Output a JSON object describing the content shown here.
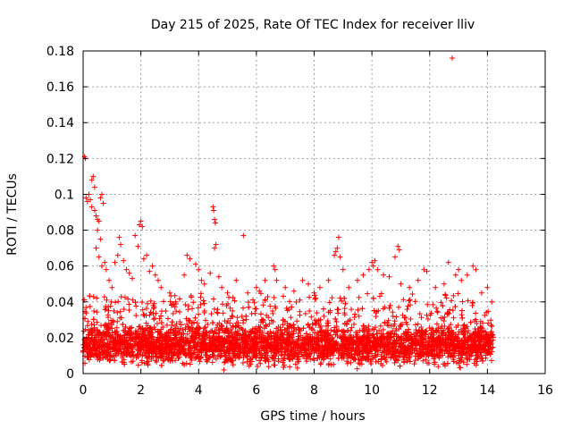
{
  "chart_data": {
    "type": "scatter",
    "title": "Day 215 of 2025, Rate Of TEC Index for receiver lliv",
    "xlabel": "GPS time / hours",
    "ylabel": "ROTI / TECUs",
    "xlim": [
      0,
      16
    ],
    "ylim": [
      0,
      0.18
    ],
    "xticks": [
      0,
      2,
      4,
      6,
      8,
      10,
      12,
      14,
      16
    ],
    "yticks": [
      0,
      0.02,
      0.04,
      0.06,
      0.08,
      0.1,
      0.12,
      0.14,
      0.16,
      0.18
    ],
    "xtick_labels": [
      "0",
      "2",
      "4",
      "6",
      "8",
      "10",
      "12",
      "14",
      "16"
    ],
    "ytick_labels": [
      "0",
      "0.02",
      "0.04",
      "0.06",
      "0.08",
      "0.1",
      "0.12",
      "0.14",
      "0.16",
      "0.18"
    ],
    "grid": true,
    "marker": "+",
    "color": "#ff0000",
    "series": [
      {
        "name": "ROTI",
        "points": [
          [
            0.05,
            0.121
          ],
          [
            0.08,
            0.12
          ],
          [
            0.1,
            0.098
          ],
          [
            0.15,
            0.096
          ],
          [
            0.2,
            0.1
          ],
          [
            0.25,
            0.097
          ],
          [
            0.3,
            0.108
          ],
          [
            0.35,
            0.11
          ],
          [
            0.4,
            0.104
          ],
          [
            0.45,
            0.088
          ],
          [
            0.5,
            0.086
          ],
          [
            0.55,
            0.085
          ],
          [
            0.6,
            0.098
          ],
          [
            0.65,
            0.1
          ],
          [
            0.7,
            0.095
          ],
          [
            0.3,
            0.093
          ],
          [
            0.4,
            0.091
          ],
          [
            0.5,
            0.08
          ],
          [
            0.45,
            0.07
          ],
          [
            0.55,
            0.065
          ],
          [
            0.6,
            0.075
          ],
          [
            0.65,
            0.06
          ],
          [
            0.75,
            0.062
          ],
          [
            0.8,
            0.058
          ],
          [
            0.9,
            0.052
          ],
          [
            1.0,
            0.048
          ],
          [
            1.1,
            0.062
          ],
          [
            1.2,
            0.066
          ],
          [
            1.25,
            0.076
          ],
          [
            1.3,
            0.072
          ],
          [
            1.4,
            0.063
          ],
          [
            1.5,
            0.058
          ],
          [
            1.6,
            0.056
          ],
          [
            1.7,
            0.053
          ],
          [
            1.8,
            0.077
          ],
          [
            1.9,
            0.071
          ],
          [
            1.95,
            0.083
          ],
          [
            2.0,
            0.085
          ],
          [
            2.05,
            0.082
          ],
          [
            2.1,
            0.064
          ],
          [
            2.2,
            0.066
          ],
          [
            2.3,
            0.057
          ],
          [
            2.4,
            0.06
          ],
          [
            2.5,
            0.055
          ],
          [
            2.6,
            0.052
          ],
          [
            2.7,
            0.048
          ],
          [
            3.0,
            0.045
          ],
          [
            3.2,
            0.04
          ],
          [
            3.5,
            0.055
          ],
          [
            3.6,
            0.066
          ],
          [
            3.7,
            0.064
          ],
          [
            3.9,
            0.061
          ],
          [
            4.0,
            0.058
          ],
          [
            4.1,
            0.052
          ],
          [
            4.2,
            0.05
          ],
          [
            4.4,
            0.056
          ],
          [
            4.5,
            0.093
          ],
          [
            4.52,
            0.091
          ],
          [
            4.55,
            0.086
          ],
          [
            4.58,
            0.084
          ],
          [
            4.6,
            0.072
          ],
          [
            4.55,
            0.07
          ],
          [
            4.7,
            0.054
          ],
          [
            4.8,
            0.048
          ],
          [
            5.0,
            0.045
          ],
          [
            5.3,
            0.052
          ],
          [
            5.55,
            0.077
          ],
          [
            5.7,
            0.045
          ],
          [
            6.0,
            0.048
          ],
          [
            6.1,
            0.046
          ],
          [
            6.3,
            0.052
          ],
          [
            6.6,
            0.06
          ],
          [
            6.65,
            0.058
          ],
          [
            6.7,
            0.052
          ],
          [
            7.0,
            0.048
          ],
          [
            7.3,
            0.046
          ],
          [
            7.6,
            0.052
          ],
          [
            7.8,
            0.05
          ],
          [
            8.0,
            0.045
          ],
          [
            8.2,
            0.048
          ],
          [
            8.5,
            0.052
          ],
          [
            8.7,
            0.066
          ],
          [
            8.75,
            0.068
          ],
          [
            8.8,
            0.07
          ],
          [
            8.85,
            0.076
          ],
          [
            8.9,
            0.065
          ],
          [
            9.0,
            0.058
          ],
          [
            9.2,
            0.048
          ],
          [
            9.5,
            0.052
          ],
          [
            9.7,
            0.055
          ],
          [
            9.9,
            0.058
          ],
          [
            10.0,
            0.062
          ],
          [
            10.05,
            0.06
          ],
          [
            10.1,
            0.063
          ],
          [
            10.2,
            0.058
          ],
          [
            10.4,
            0.055
          ],
          [
            10.6,
            0.054
          ],
          [
            10.8,
            0.065
          ],
          [
            10.9,
            0.071
          ],
          [
            10.95,
            0.069
          ],
          [
            11.0,
            0.05
          ],
          [
            11.3,
            0.048
          ],
          [
            11.6,
            0.052
          ],
          [
            11.8,
            0.058
          ],
          [
            11.9,
            0.057
          ],
          [
            12.2,
            0.048
          ],
          [
            12.5,
            0.05
          ],
          [
            12.65,
            0.062
          ],
          [
            12.78,
            0.176
          ],
          [
            12.9,
            0.055
          ],
          [
            13.0,
            0.058
          ],
          [
            13.1,
            0.052
          ],
          [
            13.3,
            0.055
          ],
          [
            13.5,
            0.06
          ],
          [
            13.6,
            0.058
          ],
          [
            13.8,
            0.045
          ],
          [
            14.0,
            0.048
          ],
          [
            14.15,
            0.04
          ]
        ]
      }
    ],
    "dense_band": {
      "x_range": [
        0.0,
        14.2
      ],
      "typical_min": 0.0,
      "typical_max": 0.045,
      "median": 0.016,
      "sample_count": 4200
    }
  }
}
